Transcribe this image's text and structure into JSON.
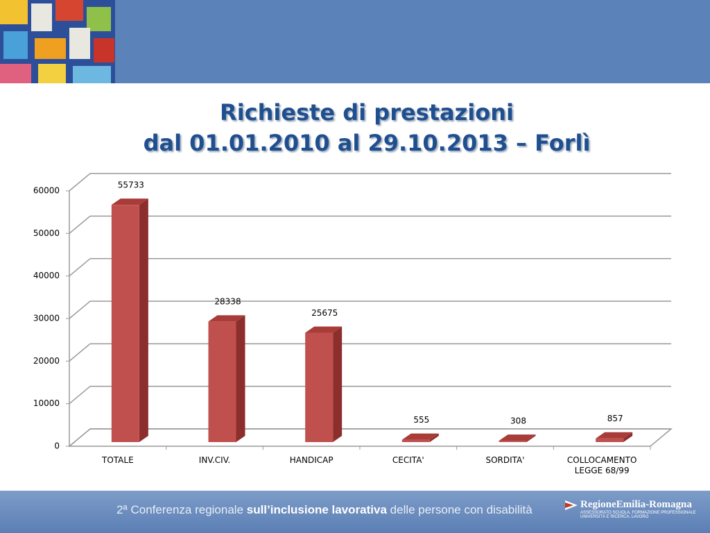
{
  "chart_data": {
    "type": "bar3d",
    "title": [
      "Richieste di prestazioni",
      "dal 01.01.2010 al 29.10.2013 – Forlì"
    ],
    "categories": [
      "TOTALE",
      "INV.CIV.",
      "HANDICAP",
      "CECITA'",
      "SORDITA'",
      "COLLOCAMENTO LEGGE 68/99"
    ],
    "values": [
      55733,
      28338,
      25675,
      555,
      308,
      857
    ],
    "color": "#c0504d",
    "ylim": [
      0,
      60000
    ],
    "yticks": [
      0,
      10000,
      20000,
      30000,
      40000,
      50000,
      60000
    ],
    "grid": true
  },
  "footer": {
    "parts": [
      {
        "text": "2ª Conferenza regionale ",
        "bold": false
      },
      {
        "text": "sull’inclusione lavorativa",
        "bold": true
      },
      {
        "text": " delle persone con disabilità",
        "bold": false
      }
    ],
    "logo": {
      "name": "RegioneEmilia-Romagna",
      "line1": "Assessorato Scuola, formazione professionale",
      "line2": "Università e ricerca, lavoro"
    }
  }
}
